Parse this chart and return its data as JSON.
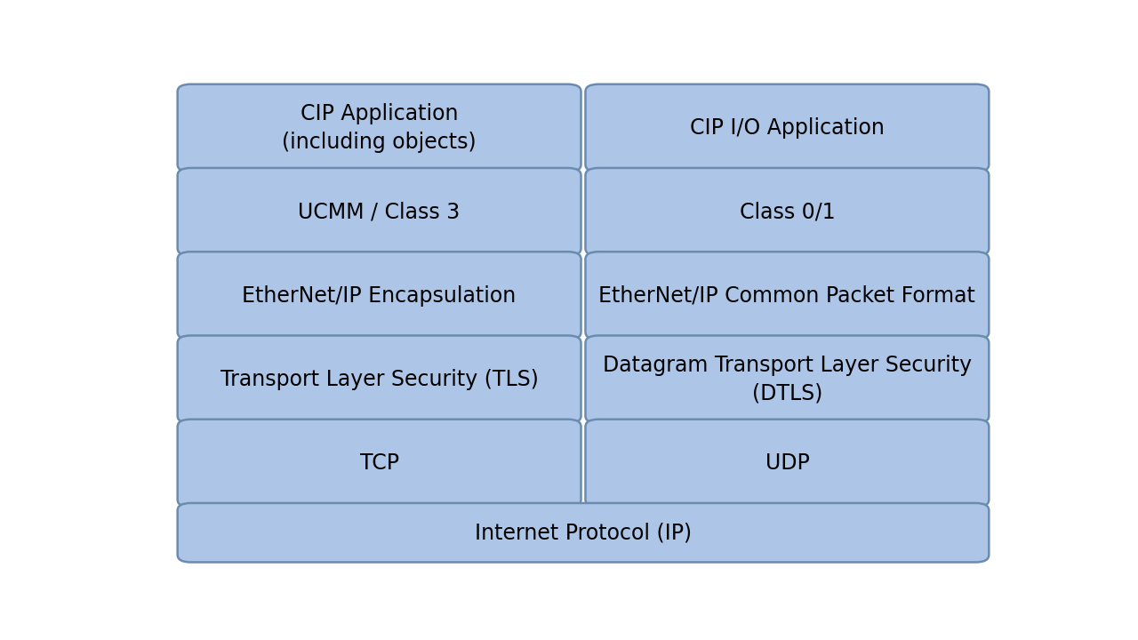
{
  "background_color": "#ffffff",
  "box_fill_color": "#adc6e8",
  "box_edge_color": "#6b8cae",
  "text_color": "#000000",
  "left_column": [
    {
      "label": "CIP Application\n(including objects)",
      "row": 5
    },
    {
      "label": "UCMM / Class 3",
      "row": 4
    },
    {
      "label": "EtherNet/IP Encapsulation",
      "row": 3
    },
    {
      "label": "Transport Layer Security (TLS)",
      "row": 2
    },
    {
      "label": "TCP",
      "row": 1
    }
  ],
  "right_column": [
    {
      "label": "CIP I/O Application",
      "row": 5
    },
    {
      "label": "Class 0/1",
      "row": 4
    },
    {
      "label": "EtherNet/IP Common Packet Format",
      "row": 3
    },
    {
      "label": "Datagram Transport Layer Security\n(DTLS)",
      "row": 2
    },
    {
      "label": "UDP",
      "row": 1
    }
  ],
  "bottom_box": {
    "label": "Internet Protocol (IP)"
  },
  "fig_width": 12.8,
  "fig_height": 7.2,
  "font_size": 17,
  "font_family": "DejaVu Sans"
}
